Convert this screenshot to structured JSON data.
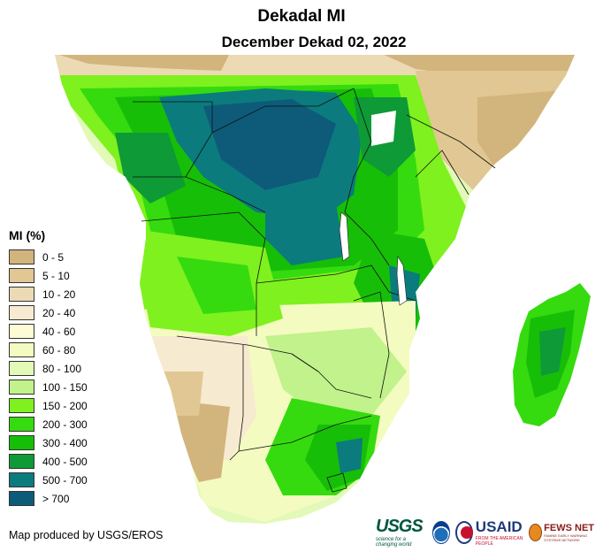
{
  "header": {
    "title": "Dekadal MI",
    "subtitle": "December Dekad 02, 2022"
  },
  "legend": {
    "title": "MI (%)",
    "items": [
      {
        "label": "0 - 5",
        "color": "#d2b47d"
      },
      {
        "label": "5 - 10",
        "color": "#e1c793"
      },
      {
        "label": "10 - 20",
        "color": "#ecdab4"
      },
      {
        "label": "20 - 40",
        "color": "#f6ead0"
      },
      {
        "label": "40 - 60",
        "color": "#fdfbd5"
      },
      {
        "label": "60 - 80",
        "color": "#f4fbc0"
      },
      {
        "label": "80 - 100",
        "color": "#e3f9b7"
      },
      {
        "label": "100 - 150",
        "color": "#c1f28b"
      },
      {
        "label": "150 - 200",
        "color": "#7ef11f"
      },
      {
        "label": "200 - 300",
        "color": "#35db0e"
      },
      {
        "label": "300 - 400",
        "color": "#16be08"
      },
      {
        "label": "400 - 500",
        "color": "#0e9a36"
      },
      {
        "label": "500 - 700",
        "color": "#0b7b7d"
      },
      {
        "label": "> 700",
        "color": "#0d5b79"
      }
    ]
  },
  "footer": {
    "credit": "Map produced by USGS/EROS"
  },
  "logos": {
    "usgs": "USGS",
    "usgs_tagline": "science for a changing world",
    "usaid": "USAID",
    "usaid_tagline": "FROM THE AMERICAN PEOPLE",
    "fews": "FEWS NET",
    "fews_tagline": "FAMINE EARLY WARNING SYSTEMS NETWORK"
  }
}
